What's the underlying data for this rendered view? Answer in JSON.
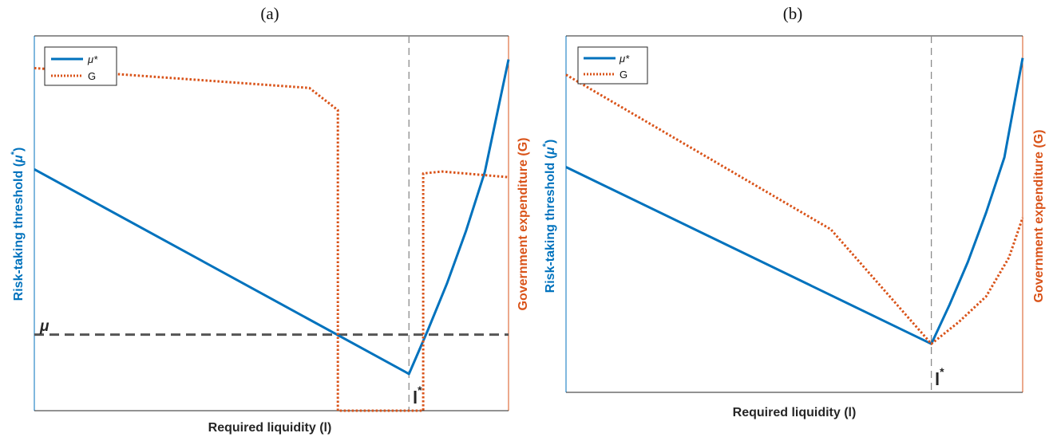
{
  "colors": {
    "mu_star": "#0072BD",
    "G": "#D95319",
    "threshold": "#555555",
    "cutoff": "#8c8c8c",
    "axes": "#262626"
  },
  "chart_data": [
    {
      "type": "line",
      "title": "(a)",
      "xlabel": "Required liquidity (l)",
      "ylabel_left": "Risk-taking threshold (μ*)",
      "ylabel_right": "Government expenditure (G)",
      "x_ticks": "none",
      "y_ticks": "none",
      "grid": false,
      "legend_position": "top-left",
      "xlim": [
        0,
        1
      ],
      "ylim_left": [
        0,
        1
      ],
      "ylim_right": [
        0,
        1
      ],
      "series": [
        {
          "name": "μ*",
          "axis": "left",
          "style": "solid",
          "x": [
            0,
            0.79,
            0.83,
            0.87,
            0.91,
            0.95,
            1.0
          ],
          "y": [
            0.644,
            0.098,
            0.215,
            0.339,
            0.478,
            0.637,
            0.937
          ]
        },
        {
          "name": "G",
          "axis": "right",
          "style": "dotted",
          "x": [
            0,
            0.58,
            0.64,
            0.64,
            0.79,
            0.82,
            0.82,
            0.86,
            1.0
          ],
          "y": [
            0.914,
            0.861,
            0.802,
            0.0,
            0.0,
            0.0,
            0.633,
            0.638,
            0.623
          ]
        }
      ],
      "annotations": {
        "threshold_label": "μ",
        "threshold_y": 0.203,
        "cutoff_label": "l",
        "cutoff_sup": "*",
        "cutoff_x": 0.79
      }
    },
    {
      "type": "line",
      "title": "(b)",
      "xlabel": "Required liquidity (l)",
      "ylabel_left": "Risk-taking threshold (μ*)",
      "ylabel_right": "Government expenditure (G)",
      "x_ticks": "none",
      "y_ticks": "none",
      "grid": false,
      "legend_position": "top-left",
      "xlim": [
        0,
        1
      ],
      "ylim_left": [
        0,
        1
      ],
      "ylim_right": [
        0,
        1
      ],
      "series": [
        {
          "name": "μ*",
          "axis": "left",
          "style": "solid",
          "x": [
            0,
            0.8,
            0.84,
            0.88,
            0.92,
            0.96,
            1.0
          ],
          "y": [
            0.632,
            0.136,
            0.246,
            0.366,
            0.504,
            0.659,
            0.938
          ]
        },
        {
          "name": "G",
          "axis": "right",
          "style": "dotted",
          "x": [
            0,
            0.58,
            0.8,
            0.86,
            0.92,
            0.97,
            1.0
          ],
          "y": [
            0.891,
            0.457,
            0.136,
            0.197,
            0.269,
            0.378,
            0.49
          ]
        }
      ],
      "annotations": {
        "cutoff_label": "l",
        "cutoff_sup": "*",
        "cutoff_x": 0.8
      }
    }
  ]
}
